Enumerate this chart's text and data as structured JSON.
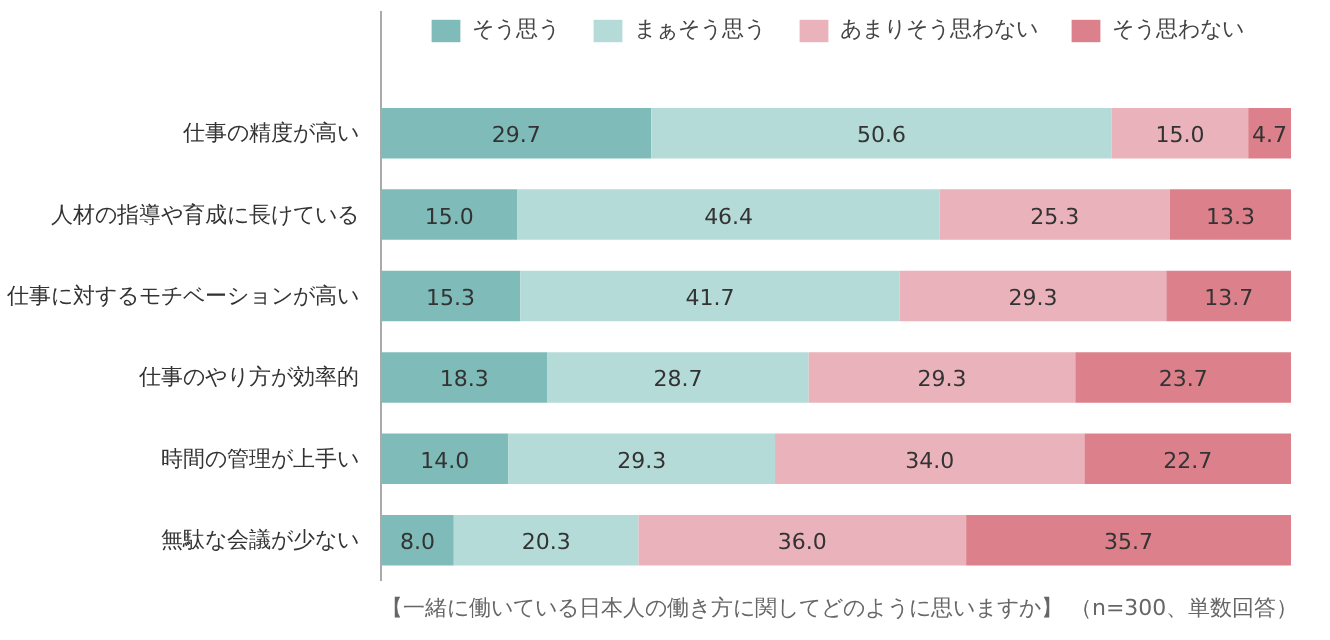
{
  "chart_data": {
    "type": "bar",
    "orientation": "horizontal",
    "stacked": true,
    "legend": "top",
    "grid": false,
    "tick_labels": "y",
    "xlim": [
      0,
      100
    ],
    "categories": [
      "仕事の精度が高い",
      "人材の指導や育成に長けている",
      "仕事に対するモチベーションが高い",
      "仕事のやり方が効率的",
      "時間の管理が上手い",
      "無駄な会議が少ない"
    ],
    "series": [
      {
        "name": "そう思う",
        "color": "#7fbcb9",
        "values": [
          29.7,
          15.0,
          15.3,
          18.3,
          14.0,
          8.0
        ],
        "value_labels": [
          "29.7",
          "15.0",
          "15.3",
          "18.3",
          "14.0",
          "8.0"
        ]
      },
      {
        "name": "まぁそう思う",
        "color": "#b5dbd8",
        "values": [
          50.6,
          46.4,
          41.7,
          28.7,
          29.3,
          20.3
        ],
        "value_labels": [
          "50.6",
          "46.4",
          "41.7",
          "28.7",
          "29.3",
          "20.3"
        ]
      },
      {
        "name": "あまりそう思わない",
        "color": "#eab2ba",
        "values": [
          15.0,
          25.3,
          29.3,
          29.3,
          34.0,
          36.0
        ],
        "value_labels": [
          "15.0",
          "25.3",
          "29.3",
          "29.3",
          "34.0",
          "36.0"
        ]
      },
      {
        "name": "そう思わない",
        "color": "#dc818b",
        "values": [
          4.7,
          13.3,
          13.7,
          23.7,
          22.7,
          35.7
        ],
        "value_labels": [
          "4.7",
          "13.3",
          "13.7",
          "23.7",
          "22.7",
          "35.7"
        ]
      }
    ],
    "annotations": [
      "【一緒に働いている日本人の働き方に関してどのように思いますか】 （n=300、単数回答）"
    ]
  }
}
